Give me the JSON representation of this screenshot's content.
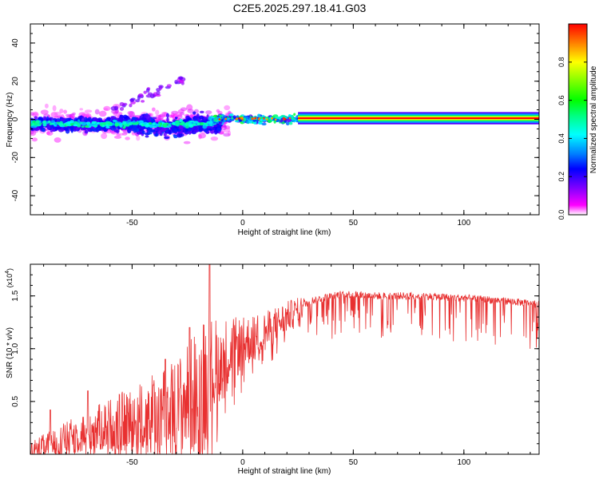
{
  "title": "C2E5.2025.297.18.41.G03",
  "chart_data": [
    {
      "type": "heatmap",
      "name": "spectrogram",
      "xlabel": "Height of straight line (km)",
      "ylabel": "Frequency (Hz)",
      "xlim": [
        -96,
        134
      ],
      "ylim": [
        -50,
        50
      ],
      "xticks": [
        -50,
        0,
        50,
        100
      ],
      "yticks": [
        -40,
        -20,
        0,
        20,
        40
      ],
      "grid": false,
      "colorbar": {
        "label": "Normalized spectral amplitude",
        "range": [
          0,
          1
        ],
        "ticks": [
          0.0,
          0.2,
          0.4,
          0.6,
          0.8
        ],
        "colors": [
          "#ffffff",
          "#ff00ff",
          "#8000ff",
          "#0000ff",
          "#0080ff",
          "#00ffff",
          "#00ff80",
          "#00ff00",
          "#80ff00",
          "#ffff00",
          "#ff8000",
          "#ff0000"
        ]
      },
      "features": [
        {
          "name": "noisy band",
          "x_range": [
            -96,
            -15
          ],
          "freq_center": -2,
          "freq_spread": 5,
          "amplitude": 0.35
        },
        {
          "name": "transition band",
          "x_range": [
            -15,
            25
          ],
          "freq_center": 0,
          "freq_spread": 2,
          "amplitude": 0.6
        },
        {
          "name": "stable carrier",
          "x_range": [
            25,
            134
          ],
          "freq_center": 0.5,
          "freq_spread": 0.6,
          "amplitude": 0.95
        },
        {
          "name": "drifting tone",
          "x_range": [
            -60,
            -27
          ],
          "freq_start": 5,
          "freq_end": 20,
          "amplitude": 0.25
        }
      ]
    },
    {
      "type": "line",
      "name": "snr",
      "xlabel": "Height of straight line (km)",
      "ylabel": "SNR (10 * v/v)",
      "y_multiplier": "(x10",
      "y_multiplier_exp": "4",
      "xlim": [
        -96,
        134
      ],
      "ylim": [
        0,
        18000
      ],
      "xticks": [
        -50,
        0,
        50,
        100
      ],
      "yticks": [
        5000,
        10000,
        15000
      ],
      "ytick_labels": [
        "0.5",
        "1.0",
        "1.5"
      ],
      "color": "#e83030",
      "trend": [
        [
          -96,
          400
        ],
        [
          -80,
          1500
        ],
        [
          -60,
          2800
        ],
        [
          -45,
          3500
        ],
        [
          -30,
          4500
        ],
        [
          -20,
          6000
        ],
        [
          -10,
          9000
        ],
        [
          0,
          10500
        ],
        [
          10,
          11500
        ],
        [
          20,
          13000
        ],
        [
          30,
          14500
        ],
        [
          45,
          15200
        ],
        [
          60,
          15000
        ],
        [
          80,
          15000
        ],
        [
          100,
          14800
        ],
        [
          120,
          14500
        ],
        [
          134,
          14200
        ]
      ],
      "noise": [
        [
          -96,
          800
        ],
        [
          -60,
          2500
        ],
        [
          -30,
          4500
        ],
        [
          -18,
          6500
        ],
        [
          -10,
          4000
        ],
        [
          0,
          2500
        ],
        [
          20,
          1500
        ],
        [
          30,
          700
        ],
        [
          134,
          700
        ]
      ],
      "peaks": [
        [
          -15,
          18000
        ],
        [
          -24,
          12000
        ],
        [
          -35,
          9000
        ],
        [
          -70,
          6000
        ],
        [
          -87,
          4200
        ]
      ]
    }
  ]
}
